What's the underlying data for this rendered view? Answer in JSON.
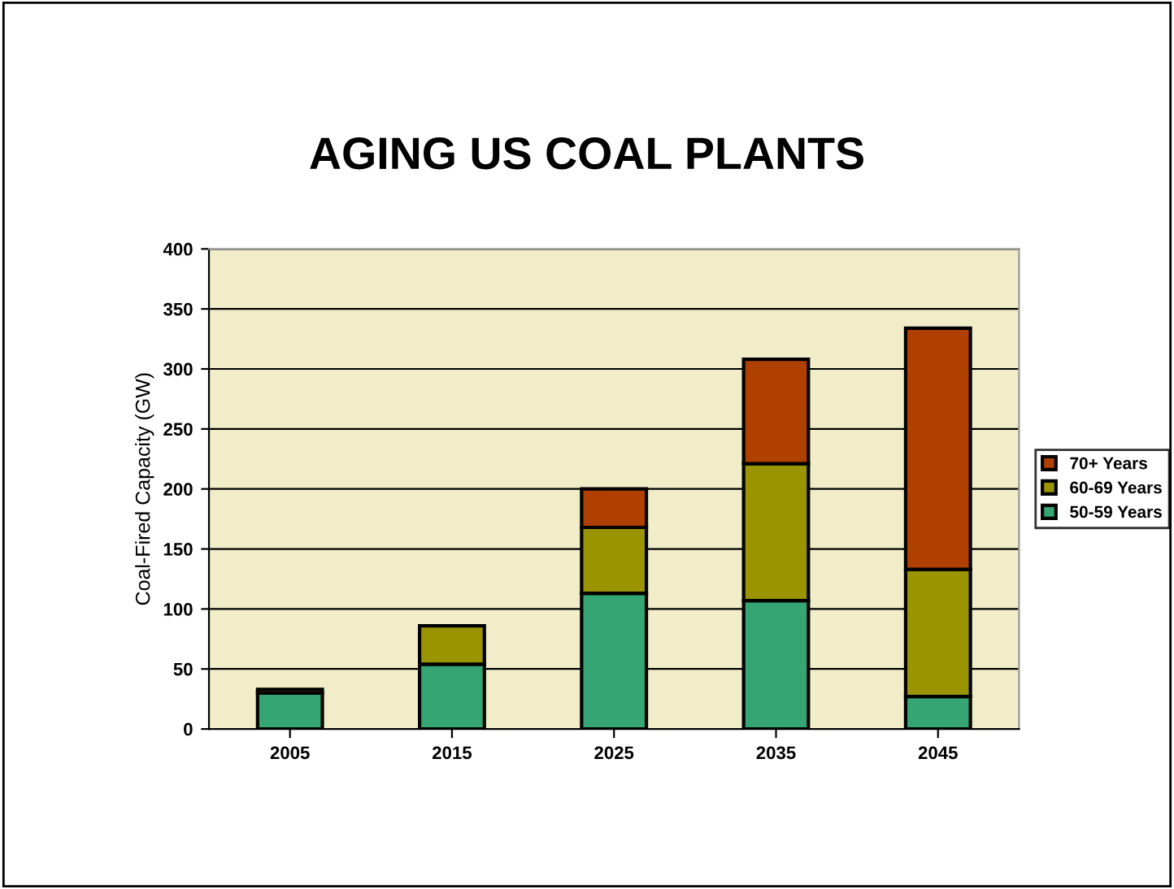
{
  "chart_data": {
    "type": "bar",
    "title": "AGING US COAL PLANTS",
    "ylabel": "Coal-Fired Capacity (GW)",
    "categories": [
      "2005",
      "2015",
      "2025",
      "2035",
      "2045"
    ],
    "stacked": true,
    "series": [
      {
        "name": "50-59 Years",
        "color": "#35a573",
        "values": [
          30,
          54,
          113,
          107,
          27
        ]
      },
      {
        "name": "60-69 Years",
        "color": "#999400",
        "values": [
          3,
          32,
          55,
          114,
          106
        ]
      },
      {
        "name": "70+ Years",
        "color": "#b04000",
        "values": [
          null,
          null,
          32,
          87,
          201
        ]
      }
    ],
    "ylim": [
      0,
      400
    ],
    "yticks": [
      0,
      50,
      100,
      150,
      200,
      250,
      300,
      350,
      400
    ],
    "grid": "y",
    "legend": "right"
  }
}
